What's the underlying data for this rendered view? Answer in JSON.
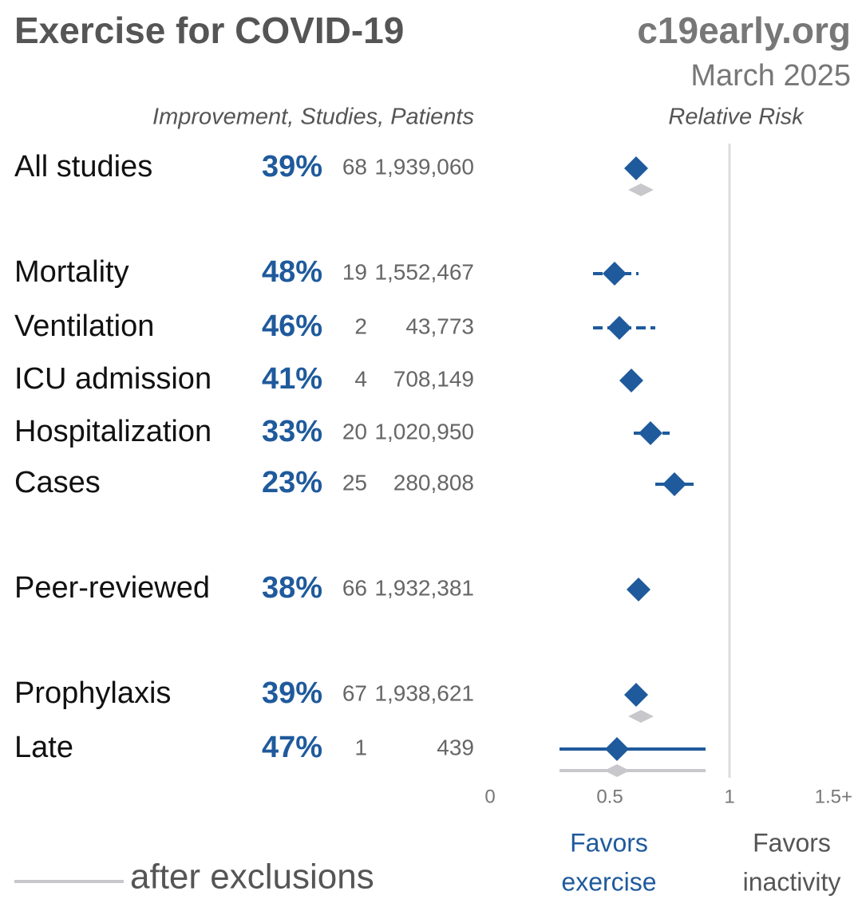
{
  "chart_data": {
    "type": "forest",
    "title": "Exercise for COVID-19",
    "site": "c19early.org",
    "date": "March 2025",
    "columns_header": "Improvement, Studies, Patients",
    "x_label": "Relative Risk",
    "categories": [
      "All studies",
      "Mortality",
      "Ventilation",
      "ICU admission",
      "Hospitalization",
      "Cases",
      "Peer-reviewed",
      "Prophylaxis",
      "Late"
    ],
    "improvement": [
      39,
      48,
      46,
      41,
      33,
      23,
      38,
      39,
      47
    ],
    "improvement_labels": [
      "39%",
      "48%",
      "46%",
      "41%",
      "33%",
      "23%",
      "38%",
      "39%",
      "47%"
    ],
    "studies": [
      68,
      19,
      2,
      4,
      20,
      25,
      66,
      67,
      1
    ],
    "patients": [
      1939060,
      1552467,
      43773,
      708149,
      1020950,
      280808,
      1932381,
      1938621,
      439
    ],
    "patients_labels": [
      "1,939,060",
      "1,552,467",
      "43,773",
      "708,149",
      "1,020,950",
      "280,808",
      "1,932,381",
      "1,938,621",
      "439"
    ],
    "values": [
      0.61,
      0.52,
      0.54,
      0.59,
      0.67,
      0.77,
      0.62,
      0.61,
      0.53
    ],
    "ci_low": [
      null,
      0.43,
      0.43,
      null,
      0.6,
      0.69,
      null,
      null,
      0.29
    ],
    "ci_high": [
      null,
      0.62,
      0.69,
      null,
      0.75,
      0.86,
      null,
      null,
      0.9
    ],
    "color": "#1f5a9c",
    "after_exclusions": {
      "name": "after exclusions",
      "color": "#c8c8cc",
      "values": [
        0.63,
        null,
        null,
        null,
        null,
        null,
        null,
        0.63,
        0.53
      ],
      "ci_low": [
        null,
        null,
        null,
        null,
        null,
        null,
        null,
        null,
        0.29
      ],
      "ci_high": [
        null,
        null,
        null,
        null,
        null,
        null,
        null,
        null,
        0.9
      ]
    },
    "xlim": [
      0,
      1.5
    ],
    "xticks": [
      0,
      0.5,
      1,
      {
        "value": 1.5,
        "label": "1.5+"
      }
    ],
    "favors_left": [
      "Favors",
      "exercise"
    ],
    "favors_right": [
      "Favors",
      "inactivity"
    ]
  }
}
